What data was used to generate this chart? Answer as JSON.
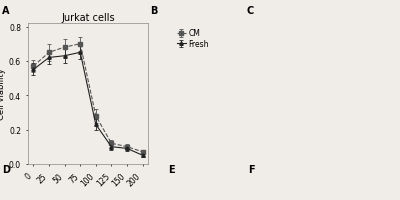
{
  "title": "Jurkat cells",
  "xlabel_values": [
    "0",
    "25",
    "50",
    "75",
    "100",
    "125",
    "150",
    "200"
  ],
  "ylabel": "Cell viability",
  "ylim": [
    0.0,
    0.82
  ],
  "yticks": [
    0.0,
    0.2,
    0.4,
    0.6,
    0.8
  ],
  "cm_values": [
    0.57,
    0.65,
    0.68,
    0.7,
    0.28,
    0.12,
    0.1,
    0.07
  ],
  "fresh_values": [
    0.55,
    0.62,
    0.63,
    0.65,
    0.23,
    0.1,
    0.09,
    0.05
  ],
  "cm_errors": [
    0.035,
    0.05,
    0.05,
    0.04,
    0.04,
    0.02,
    0.015,
    0.01
  ],
  "fresh_errors": [
    0.035,
    0.04,
    0.045,
    0.04,
    0.03,
    0.02,
    0.015,
    0.01
  ],
  "cm_color": "#555555",
  "fresh_color": "#222222",
  "legend_cm": "CM",
  "legend_fresh": "Fresh",
  "background_color": "#f0ede8",
  "title_fontsize": 7,
  "label_fontsize": 6,
  "tick_fontsize": 5.5
}
